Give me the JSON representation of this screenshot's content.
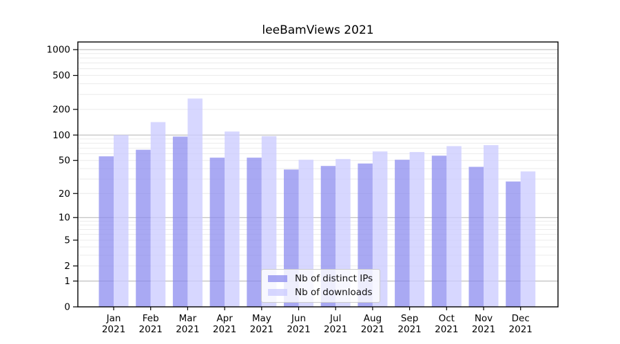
{
  "title": "leeBamViews 2021",
  "chart_data": {
    "type": "bar",
    "title": "leeBamViews 2021",
    "categories": [
      "Jan",
      "Feb",
      "Mar",
      "Apr",
      "May",
      "Jun",
      "Jul",
      "Aug",
      "Sep",
      "Oct",
      "Nov",
      "Dec"
    ],
    "category_year_line": "2021",
    "series": [
      {
        "name": "Nb of distinct IPs",
        "color": "#8888ee",
        "alpha": 0.72,
        "values": [
          56,
          67,
          96,
          54,
          54,
          39,
          43,
          46,
          51,
          57,
          42,
          28
        ]
      },
      {
        "name": "Nb of downloads",
        "color": "#ccccff",
        "alpha": 0.78,
        "values": [
          100,
          142,
          268,
          110,
          97,
          51,
          52,
          64,
          63,
          74,
          76,
          37
        ]
      }
    ],
    "xlabel": "",
    "ylabel": "",
    "yscale": "log1p",
    "yticks": [
      1000,
      500,
      200,
      100,
      50,
      20,
      10,
      5,
      2,
      1,
      0
    ],
    "ylim": [
      0,
      1230
    ],
    "grid": true,
    "major_grid_color": "#b3b3b3",
    "minor_grid_color": "#e8e8e8",
    "legend_position": "lower center",
    "text_color": "#000000"
  }
}
